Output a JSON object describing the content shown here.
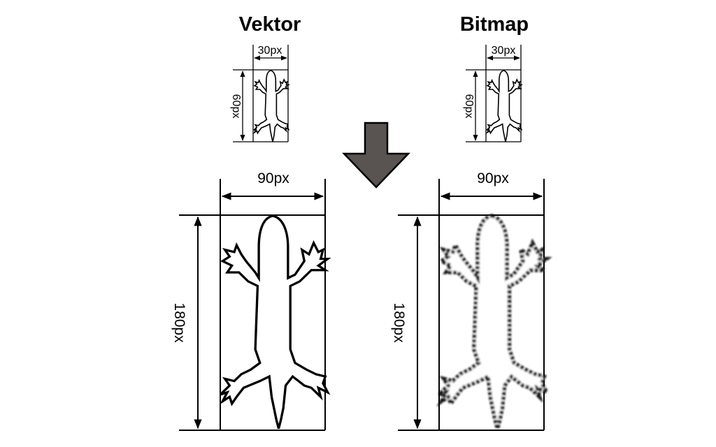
{
  "headings": {
    "vector": "Vektor",
    "bitmap": "Bitmap"
  },
  "small": {
    "width_label": "30px",
    "height_label": "60px"
  },
  "large": {
    "width_label": "90px",
    "height_label": "180px"
  },
  "colors": {
    "arrow_fill": "#595451",
    "arrow_stroke": "#000000",
    "line": "#000000"
  },
  "icons": {
    "transition": "arrow-down-icon",
    "subject": "gecko-silhouette"
  }
}
